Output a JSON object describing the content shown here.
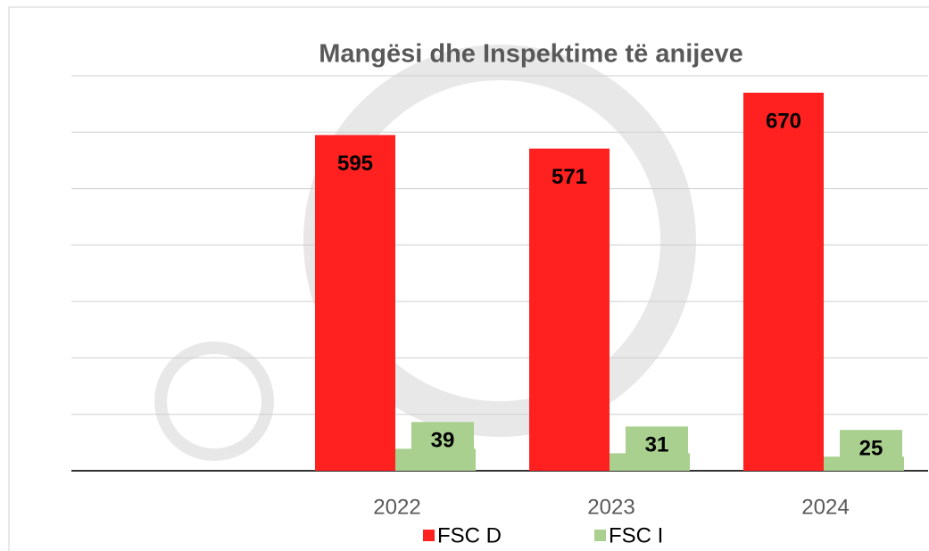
{
  "chart_data": {
    "type": "bar",
    "title": "Mangësi dhe Inspektime të anijeve",
    "categories": [
      "2022",
      "2023",
      "2024"
    ],
    "series": [
      {
        "name": "FSC D",
        "color": "#ff2020",
        "values": [
          595,
          571,
          670
        ]
      },
      {
        "name": "FSC I",
        "color": "#a9d08e",
        "values": [
          39,
          31,
          25
        ]
      }
    ],
    "ylim": [
      0,
      700
    ],
    "yticks": [
      0,
      100,
      200,
      300,
      400,
      500,
      600,
      700
    ],
    "grid": true
  }
}
